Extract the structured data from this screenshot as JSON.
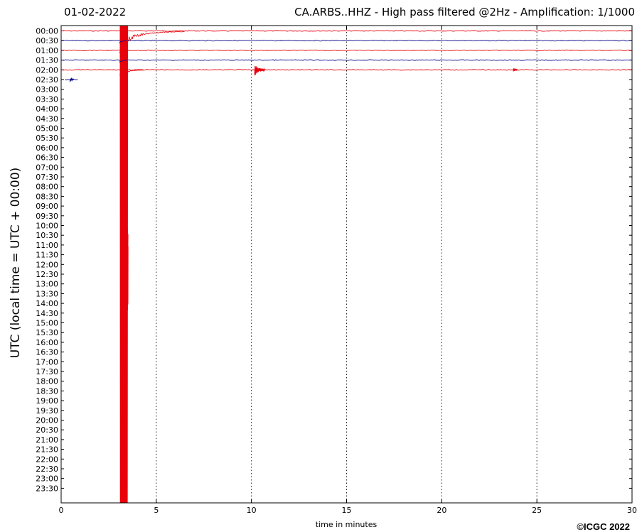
{
  "header": {
    "date": "01-02-2022",
    "station_title": "CA.ARBS..HHZ - High pass filtered @2Hz - Amplification: 1/1000"
  },
  "copyright": "©ICGC 2022",
  "chart_data": {
    "type": "helicorder",
    "title": "CA.ARBS..HHZ - High pass filtered @2Hz - Amplification: 1/1000",
    "date": "01-02-2022",
    "xlabel": "time in minutes",
    "ylabel": "UTC (local time = UTC + 00:00)",
    "xlim": [
      0,
      30
    ],
    "x_ticks": [
      "0",
      "5",
      "10",
      "15",
      "20",
      "25",
      "30"
    ],
    "x_gridlines": [
      5,
      10,
      15,
      20,
      25
    ],
    "grid": "vertical dotted",
    "row_labels": [
      "00:00",
      "00:30",
      "01:00",
      "01:30",
      "02:00",
      "02:30",
      "03:00",
      "03:30",
      "04:00",
      "04:30",
      "05:00",
      "05:30",
      "06:00",
      "06:30",
      "07:00",
      "07:30",
      "08:00",
      "08:30",
      "09:00",
      "09:30",
      "10:00",
      "10:30",
      "11:00",
      "11:30",
      "12:00",
      "12:30",
      "13:00",
      "13:30",
      "14:00",
      "14:30",
      "15:00",
      "15:30",
      "16:00",
      "16:30",
      "17:00",
      "17:30",
      "18:00",
      "18:30",
      "19:00",
      "19:30",
      "20:00",
      "20:30",
      "21:00",
      "21:30",
      "22:00",
      "22:30",
      "23:00",
      "23:30"
    ],
    "colors": {
      "trace_a": "#e8000b",
      "trace_b": "#0a0a8c"
    },
    "traces": [
      {
        "row": "00:00",
        "color": "trace_a",
        "start": 0,
        "end": 30
      },
      {
        "row": "00:30",
        "color": "trace_b",
        "start": 0,
        "end": 30
      },
      {
        "row": "01:00",
        "color": "trace_a",
        "start": 0,
        "end": 30
      },
      {
        "row": "01:30",
        "color": "trace_b",
        "start": 0,
        "end": 30
      },
      {
        "row": "02:00",
        "color": "trace_a",
        "start": 0,
        "end": 30
      },
      {
        "row": "02:30",
        "color": "trace_b",
        "start": 0.2,
        "end": 0.9
      }
    ],
    "events": [
      {
        "row": "00:00",
        "minute": 3.1,
        "type": "teleseism",
        "peak_amplitude_rows": 50,
        "coda_end_minute": 6.5
      },
      {
        "row": "02:00",
        "minute": 10.2,
        "type": "local",
        "peak_amplitude_rows": 0.8
      },
      {
        "row": "02:00",
        "minute": 23.8,
        "type": "small",
        "peak_amplitude_rows": 0.2
      },
      {
        "row": "02:30",
        "minute": 0.5,
        "type": "small",
        "peak_amplitude_rows": 0.2
      }
    ]
  }
}
